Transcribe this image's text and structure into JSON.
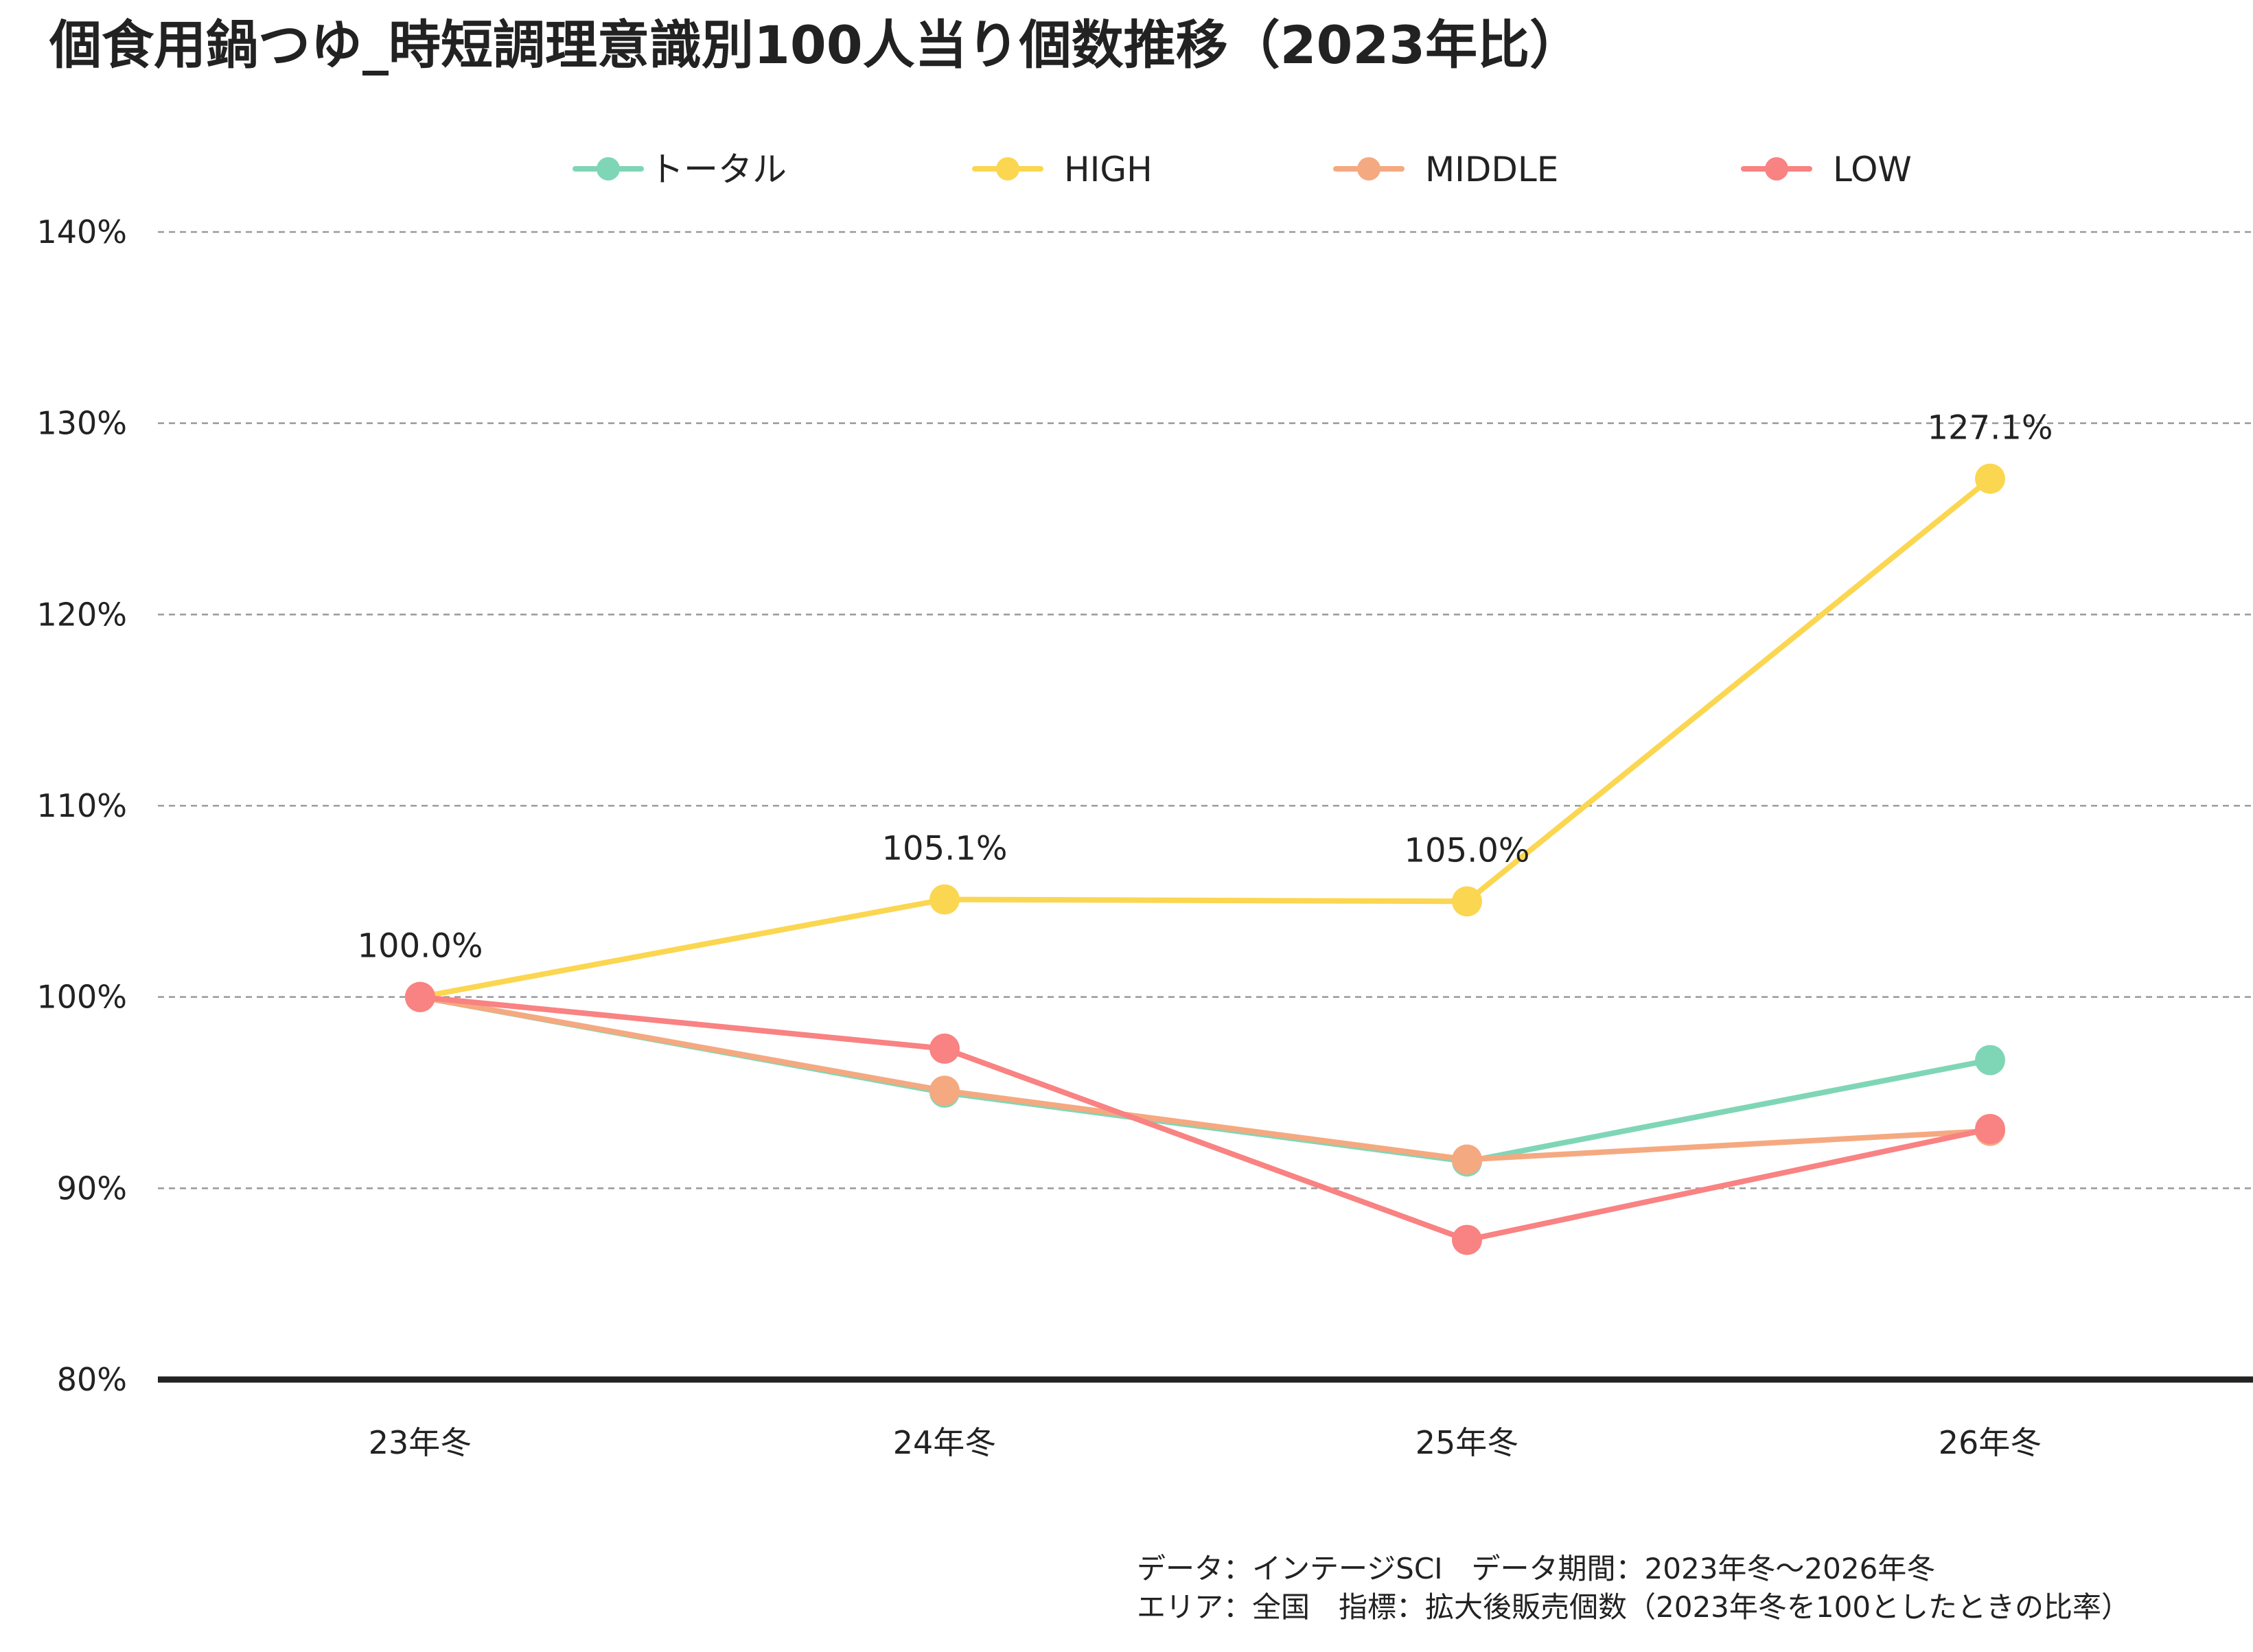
{
  "chart_data": {
    "type": "line",
    "title": "個食用鍋つゆ_時短調理意識別100人当り個数推移（2023年比）",
    "categories": [
      "23年冬",
      "24年冬",
      "25年冬",
      "26年冬"
    ],
    "ylim": [
      80,
      140
    ],
    "yticks": [
      80,
      90,
      100,
      110,
      120,
      130,
      140
    ],
    "ytick_labels": [
      "80%",
      "90%",
      "100%",
      "110%",
      "120%",
      "130%",
      "140%"
    ],
    "grid": true,
    "legend_position": "top",
    "series": [
      {
        "name": "トータル",
        "color": "#7fd6b6",
        "values": [
          100.0,
          95.0,
          91.4,
          96.7
        ]
      },
      {
        "name": "HIGH",
        "color": "#fbd650",
        "values": [
          100.0,
          105.1,
          105.0,
          127.1
        ]
      },
      {
        "name": "MIDDLE",
        "color": "#f5a980",
        "values": [
          100.0,
          95.1,
          91.5,
          93.0
        ]
      },
      {
        "name": "LOW",
        "color": "#f98282",
        "values": [
          100.0,
          97.3,
          87.3,
          93.1
        ]
      }
    ],
    "annotations": [
      {
        "series": "HIGH",
        "category": "23年冬",
        "value": 100.0,
        "label": "100.0%"
      },
      {
        "series": "HIGH",
        "category": "24年冬",
        "value": 105.1,
        "label": "105.1%"
      },
      {
        "series": "HIGH",
        "category": "25年冬",
        "value": 105.0,
        "label": "105.0%"
      },
      {
        "series": "HIGH",
        "category": "26年冬",
        "value": 127.1,
        "label": "127.1%"
      }
    ],
    "footnotes": [
      "データ：インテージSCI　データ期間：2023年冬～2026年冬",
      "エリア：全国　指標：拡大後販売個数（2023年冬を100としたときの比率）"
    ]
  }
}
